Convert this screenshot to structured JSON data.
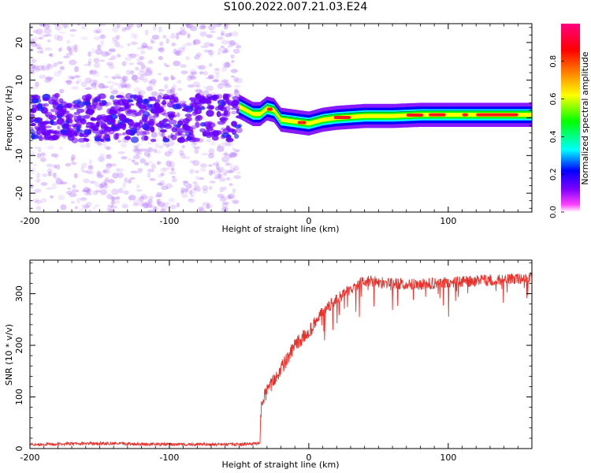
{
  "figure_title": "S100.2022.007.21.03.E24",
  "chart_data": [
    {
      "type": "heatmap",
      "xlabel": "Height of straight line (km)",
      "ylabel": "Frequency (Hz)",
      "xlim": [
        -200,
        160
      ],
      "ylim": [
        -25,
        25
      ],
      "x_ticks": [
        -200,
        -100,
        0,
        100
      ],
      "y_ticks": [
        -20,
        -10,
        0,
        10,
        20
      ],
      "colorbar": {
        "label": "Normalized spectral amplitude",
        "range": [
          0,
          1
        ],
        "ticks": [
          0.0,
          0.2,
          0.4,
          0.6,
          0.8
        ],
        "tick_labels": [
          "0.0",
          "0.2",
          "0.4",
          "0.6",
          "0.8"
        ],
        "colormap": [
          "#ffffff",
          "#ff00ff",
          "#8000ff",
          "#0000ff",
          "#00ffff",
          "#00ff00",
          "#ffff00",
          "#ff8000",
          "#ff0000",
          "#ff0080"
        ]
      },
      "signal_path": {
        "x": [
          -50,
          -45,
          -40,
          -35,
          -30,
          -25,
          -20,
          -10,
          0,
          10,
          20,
          40,
          60,
          80,
          100,
          120,
          140,
          160
        ],
        "frequency": [
          3,
          2,
          1,
          1,
          2.5,
          2,
          -0.5,
          -1,
          -1.5,
          -0.5,
          0,
          0.5,
          0.5,
          0.8,
          0.8,
          0.8,
          0.8,
          0.8
        ]
      },
      "noise_region_x": [
        -200,
        -50
      ],
      "signal_region_x": [
        -50,
        160
      ]
    },
    {
      "type": "line",
      "xlabel": "Height of straight line (km)",
      "ylabel": "SNR (10 * v/v)",
      "xlim": [
        -200,
        160
      ],
      "ylim": [
        0,
        365
      ],
      "x_ticks": [
        -200,
        -100,
        0,
        100
      ],
      "y_ticks": [
        0,
        100,
        200,
        300
      ],
      "series": [
        {
          "color": "#e8302a",
          "x": [
            -200,
            -150,
            -100,
            -50,
            -35,
            -34,
            -30,
            -20,
            -15,
            -10,
            0,
            10,
            20,
            30,
            40,
            60,
            80,
            100,
            120,
            140,
            160
          ],
          "values": [
            8,
            10,
            8,
            8,
            10,
            95,
            110,
            155,
            175,
            200,
            225,
            265,
            290,
            310,
            325,
            320,
            318,
            322,
            325,
            328,
            330
          ]
        }
      ]
    }
  ]
}
